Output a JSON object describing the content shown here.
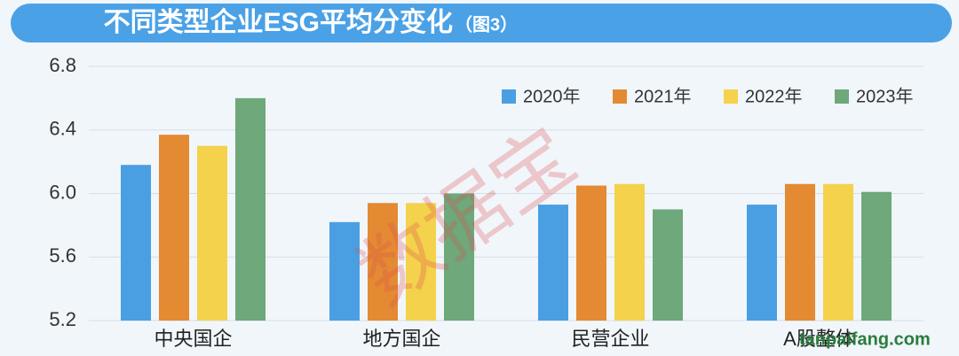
{
  "chart_data": {
    "type": "bar",
    "title": "不同类型企业ESG平均分变化",
    "title_note": "（图3）",
    "watermark": "数据宝",
    "source_watermark": "tanpaifang.com",
    "categories": [
      "中央国企",
      "地方国企",
      "民营企业",
      "A股整体"
    ],
    "series": [
      {
        "name": "2020年",
        "color": "#4a9fe2",
        "values": [
          6.18,
          5.82,
          5.93,
          5.93
        ]
      },
      {
        "name": "2021年",
        "color": "#e38a33",
        "values": [
          6.37,
          5.94,
          6.05,
          6.06
        ]
      },
      {
        "name": "2022年",
        "color": "#f4d24b",
        "values": [
          6.3,
          5.94,
          6.06,
          6.06
        ]
      },
      {
        "name": "2023年",
        "color": "#6ea87b",
        "values": [
          6.6,
          6.0,
          5.9,
          6.01
        ]
      }
    ],
    "ylim": [
      5.2,
      6.8
    ],
    "yticks": [
      5.2,
      5.6,
      {
        "value": 6,
        "label": "6.0"
      },
      6.4,
      6.8
    ],
    "grid": true,
    "legend": "top-right"
  }
}
